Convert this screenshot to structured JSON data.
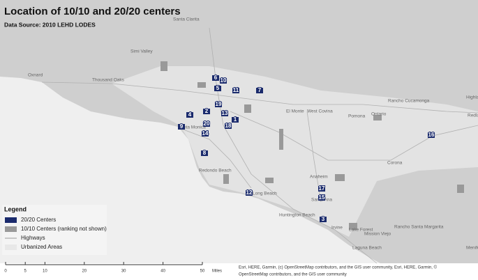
{
  "title": "Location of 10/10 and 20/20 centers",
  "subtitle": "Data Source: 2010 LEHD LODES",
  "legend": {
    "title": "Legend",
    "items": [
      "20/20 Centers",
      "10/10 Centers (ranking not shown)",
      "Highways",
      "Urbanized Areas"
    ]
  },
  "scale_bar": {
    "ticks": [
      0,
      5,
      10,
      20,
      30,
      40,
      50
    ],
    "unit": "Miles"
  },
  "attribution": [
    "Esri, HERE, Garmin, (c) OpenStreetMap contributors, and the GIS user community, Esri, HERE, Garmin, ©",
    "OpenStreetMap contributors, and the GIS user community"
  ],
  "places": [
    "Santa Clarita",
    "Simi Valley",
    "Oxnard",
    "Thousand Oaks",
    "El Monte",
    "West Covina",
    "Pomona",
    "Ontario",
    "Rancho Cucamonga",
    "Highland",
    "Redlands",
    "Corona",
    "Anaheim",
    "Santa Ana",
    "Huntington Beach",
    "Long Beach",
    "Redondo Beach",
    "Santa Monica",
    "Irvine",
    "Lake Forest",
    "Mission Viejo",
    "Rancho Santa Margarita",
    "Laguna Beach",
    "Menifee"
  ],
  "centers": [
    "6",
    "10",
    "5",
    "11",
    "7",
    "19",
    "4",
    "13",
    "1",
    "18",
    "9",
    "20",
    "14",
    "8",
    "12",
    "17",
    "15",
    "3",
    "16",
    "2"
  ]
}
